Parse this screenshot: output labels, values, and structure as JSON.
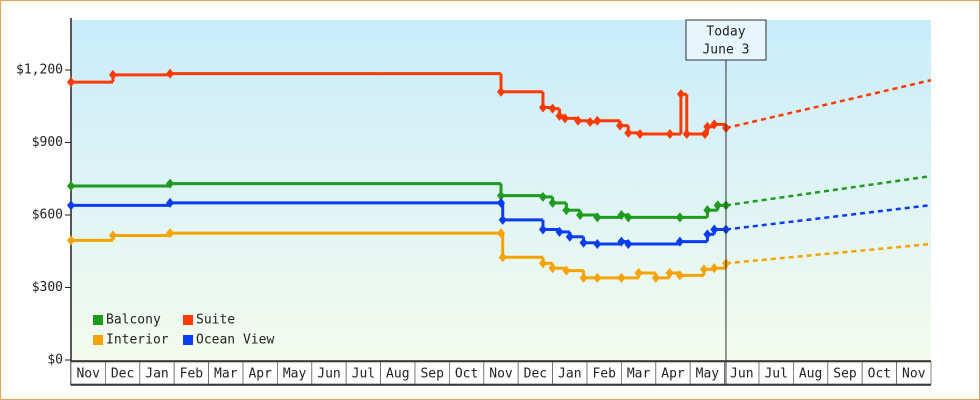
{
  "chart_data": {
    "type": "step-line",
    "categories": [
      "Nov",
      "Dec",
      "Jan",
      "Feb",
      "Mar",
      "Apr",
      "May",
      "Jun",
      "Jul",
      "Aug",
      "Sep",
      "Oct",
      "Nov",
      "Dec",
      "Jan",
      "Feb",
      "Mar",
      "Apr",
      "May",
      "Jun",
      "Jul",
      "Aug",
      "Sep",
      "Oct",
      "Nov"
    ],
    "xlim": [
      0,
      25
    ],
    "ylim": [
      0,
      1407
    ],
    "yticks": [
      {
        "value": 0,
        "label": "$0"
      },
      {
        "value": 300,
        "label": "$300"
      },
      {
        "value": 600,
        "label": "$600"
      },
      {
        "value": 900,
        "label": "$900"
      },
      {
        "value": 1200,
        "label": "$1,200"
      }
    ],
    "today": {
      "label": [
        "Today",
        "June 3"
      ],
      "x": 19.04
    },
    "legend": "bottom-left",
    "series": [
      {
        "name": "Balcony",
        "color": "#1e9a1e",
        "x": [
          0,
          2.88,
          12.5,
          13.72,
          14.0,
          14.4,
          14.8,
          15.3,
          16.0,
          16.2,
          17.7,
          18.5,
          18.8,
          19.04
        ],
        "values": [
          720,
          730,
          680,
          675,
          650,
          620,
          600,
          590,
          600,
          590,
          590,
          620,
          640,
          640
        ],
        "forecast": {
          "x": [
            19.04,
            25
          ],
          "values": [
            640,
            761
          ]
        }
      },
      {
        "name": "Suite",
        "color": "#ff3a00",
        "x": [
          0,
          1.22,
          2.88,
          12.5,
          13.72,
          14.0,
          14.2,
          14.36,
          14.74,
          15.09,
          15.3,
          15.96,
          16.2,
          16.54,
          17.41,
          17.73,
          17.9,
          18.43,
          18.5,
          18.7,
          19.04
        ],
        "values": [
          1150,
          1180,
          1185,
          1110,
          1045,
          1040,
          1010,
          1000,
          990,
          985,
          990,
          970,
          940,
          935,
          935,
          1100,
          935,
          935,
          965,
          975,
          960
        ],
        "forecast": {
          "x": [
            19.04,
            25
          ],
          "values": [
            960,
            1158
          ]
        }
      },
      {
        "name": "Interior",
        "color": "#f5a300",
        "x": [
          0,
          1.22,
          2.88,
          12.5,
          12.55,
          13.72,
          14.0,
          14.4,
          14.9,
          15.3,
          16.0,
          16.5,
          17.0,
          17.4,
          17.7,
          18.4,
          18.7,
          19.04
        ],
        "values": [
          495,
          515,
          525,
          525,
          425,
          400,
          380,
          370,
          340,
          340,
          340,
          360,
          340,
          360,
          350,
          375,
          380,
          400
        ],
        "forecast": {
          "x": [
            19.04,
            25
          ],
          "values": [
            400,
            480
          ]
        }
      },
      {
        "name": "Ocean View",
        "color": "#0a3cf0",
        "x": [
          0,
          2.88,
          12.5,
          12.55,
          13.72,
          14.2,
          14.5,
          14.9,
          15.3,
          16.0,
          16.2,
          17.7,
          18.5,
          18.7,
          19.04
        ],
        "values": [
          640,
          650,
          650,
          580,
          540,
          530,
          510,
          485,
          480,
          490,
          480,
          490,
          520,
          540,
          540
        ],
        "forecast": {
          "x": [
            19.04,
            25
          ],
          "values": [
            540,
            641
          ]
        }
      }
    ]
  }
}
